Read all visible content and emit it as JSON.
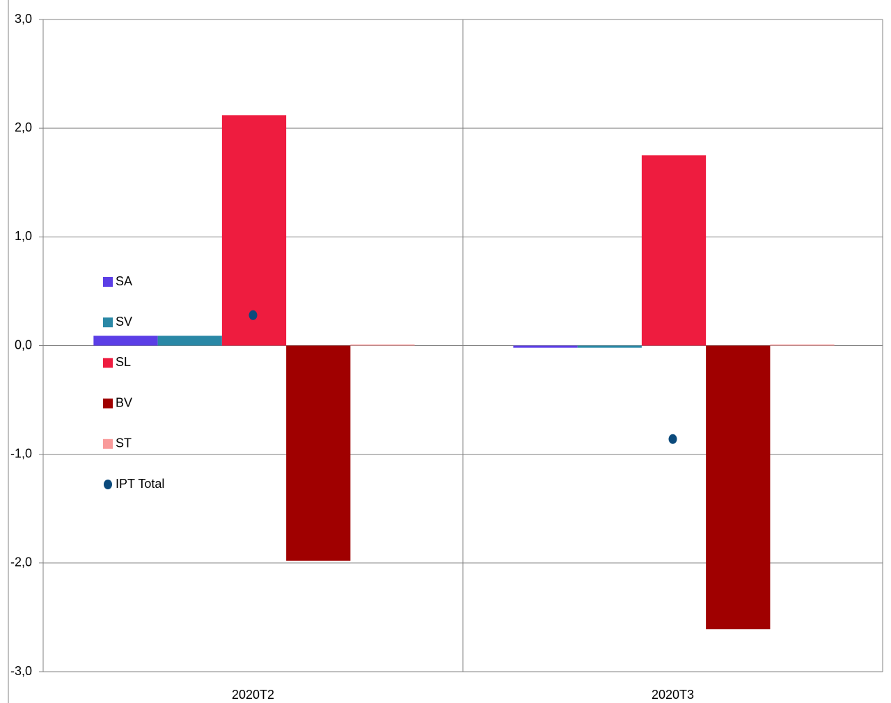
{
  "chart_data": {
    "type": "bar",
    "categories": [
      "2020T2",
      "2020T3"
    ],
    "series": [
      {
        "name": "SA",
        "color": "#5b3ee6",
        "values": [
          0.09,
          -0.02
        ]
      },
      {
        "name": "SV",
        "color": "#2a88a6",
        "values": [
          0.09,
          -0.02
        ]
      },
      {
        "name": "SL",
        "color": "#ee1c3f",
        "values": [
          2.12,
          1.75
        ]
      },
      {
        "name": "BV",
        "color": "#a00000",
        "values": [
          -1.98,
          -2.61
        ]
      },
      {
        "name": "ST",
        "color": "#f99a9a",
        "values": [
          0.01,
          0.01
        ]
      },
      {
        "name": "IPT Total",
        "color": "#0b4a7c",
        "type": "point",
        "values": [
          0.28,
          -0.86
        ]
      }
    ],
    "ylim": [
      -3,
      3
    ],
    "yticks": [
      {
        "value": -3,
        "label": "-3,0"
      },
      {
        "value": -2,
        "label": "-2,0"
      },
      {
        "value": -1,
        "label": "-1,0"
      },
      {
        "value": 0,
        "label": "0,0"
      },
      {
        "value": 1,
        "label": "1,0"
      },
      {
        "value": 2,
        "label": "2,0"
      },
      {
        "value": 3,
        "label": "3,0"
      }
    ],
    "grid": true,
    "legend": "left"
  }
}
